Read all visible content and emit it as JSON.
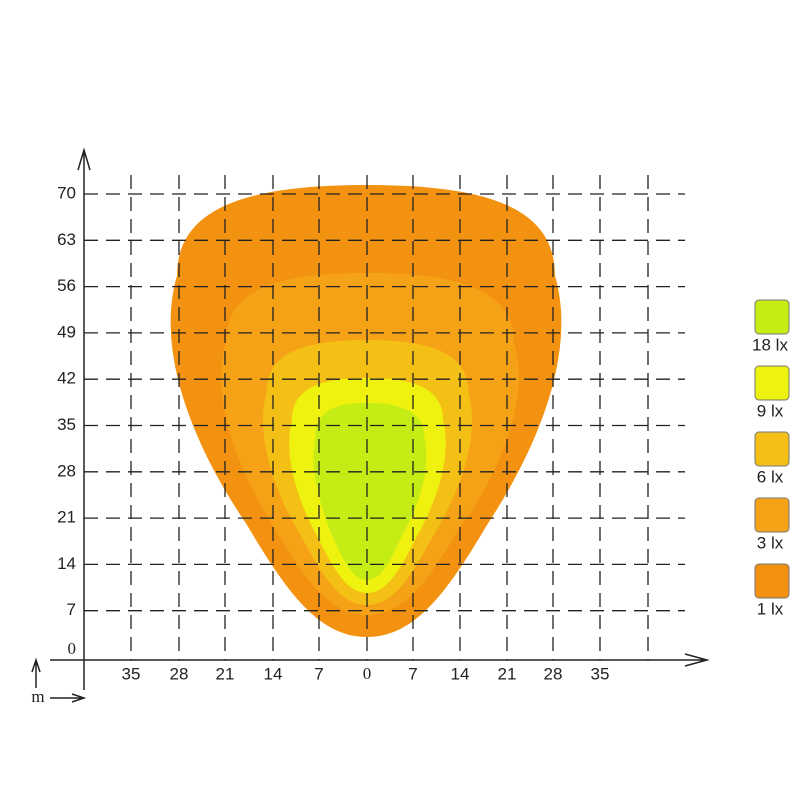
{
  "axes": {
    "x_tick_labels": [
      35,
      28,
      21,
      14,
      7,
      0,
      7,
      14,
      21,
      28,
      35
    ],
    "y_tick_labels": [
      0,
      7,
      14,
      21,
      28,
      35,
      42,
      49,
      56,
      63,
      70
    ],
    "unit": "m"
  },
  "legend": [
    {
      "label": "18 lx",
      "color": "#c6ec16"
    },
    {
      "label": "9 lx",
      "color": "#eef20e"
    },
    {
      "label": "6 lx",
      "color": "#f5c016"
    },
    {
      "label": "3 lx",
      "color": "#f5a216"
    },
    {
      "label": "1 lx",
      "color": "#f39210"
    }
  ]
}
